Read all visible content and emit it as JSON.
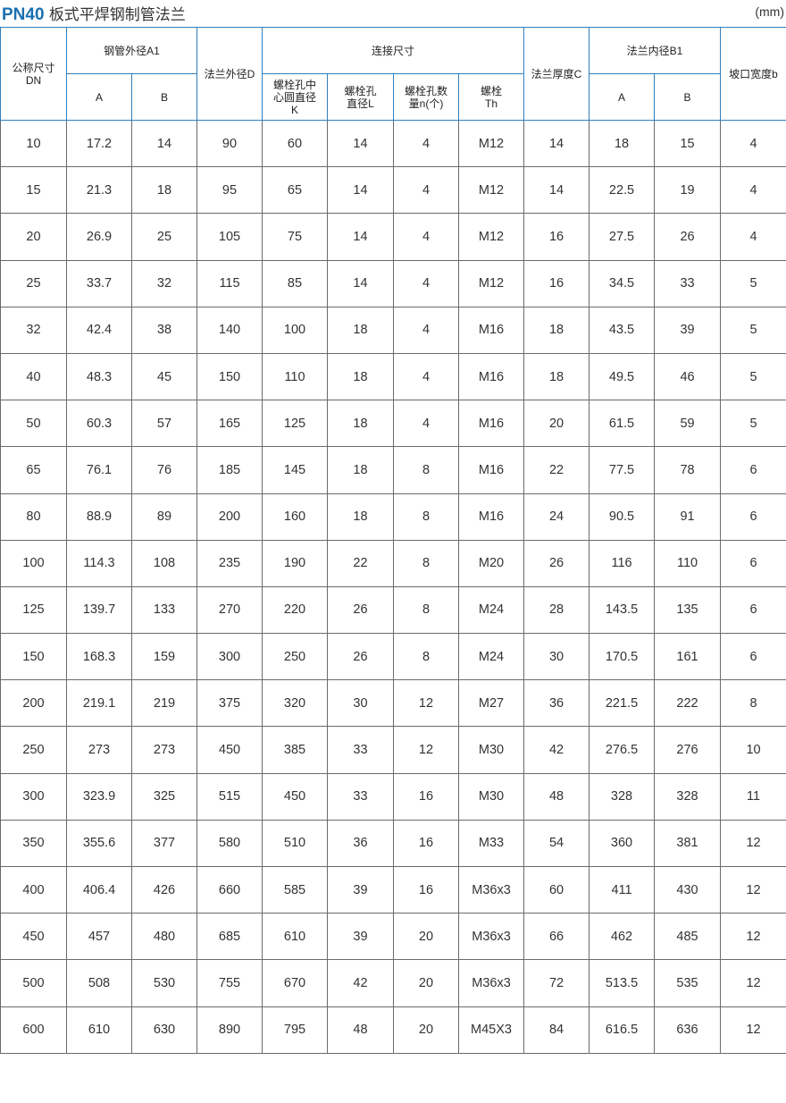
{
  "title": {
    "code": "PN40",
    "name": "板式平焊钢制管法兰"
  },
  "unit": "(mm)",
  "header": {
    "dn": "公称尺寸DN",
    "a1": "钢管外径A1",
    "d": "法兰外径D",
    "conn": "连接尺寸",
    "k": "螺栓孔中心圆直径K",
    "l": "螺栓孔直径L",
    "n": "螺栓孔数量n(个)",
    "th": "螺栓Th",
    "c": "法兰厚度C",
    "b1": "法兰内径B1",
    "b": "坡口宽度b",
    "sub_a": "A",
    "sub_b": "B"
  },
  "rows": [
    [
      "10",
      "17.2",
      "14",
      "90",
      "60",
      "14",
      "4",
      "M12",
      "14",
      "18",
      "15",
      "4"
    ],
    [
      "15",
      "21.3",
      "18",
      "95",
      "65",
      "14",
      "4",
      "M12",
      "14",
      "22.5",
      "19",
      "4"
    ],
    [
      "20",
      "26.9",
      "25",
      "105",
      "75",
      "14",
      "4",
      "M12",
      "16",
      "27.5",
      "26",
      "4"
    ],
    [
      "25",
      "33.7",
      "32",
      "115",
      "85",
      "14",
      "4",
      "M12",
      "16",
      "34.5",
      "33",
      "5"
    ],
    [
      "32",
      "42.4",
      "38",
      "140",
      "100",
      "18",
      "4",
      "M16",
      "18",
      "43.5",
      "39",
      "5"
    ],
    [
      "40",
      "48.3",
      "45",
      "150",
      "110",
      "18",
      "4",
      "M16",
      "18",
      "49.5",
      "46",
      "5"
    ],
    [
      "50",
      "60.3",
      "57",
      "165",
      "125",
      "18",
      "4",
      "M16",
      "20",
      "61.5",
      "59",
      "5"
    ],
    [
      "65",
      "76.1",
      "76",
      "185",
      "145",
      "18",
      "8",
      "M16",
      "22",
      "77.5",
      "78",
      "6"
    ],
    [
      "80",
      "88.9",
      "89",
      "200",
      "160",
      "18",
      "8",
      "M16",
      "24",
      "90.5",
      "91",
      "6"
    ],
    [
      "100",
      "114.3",
      "108",
      "235",
      "190",
      "22",
      "8",
      "M20",
      "26",
      "116",
      "110",
      "6"
    ],
    [
      "125",
      "139.7",
      "133",
      "270",
      "220",
      "26",
      "8",
      "M24",
      "28",
      "143.5",
      "135",
      "6"
    ],
    [
      "150",
      "168.3",
      "159",
      "300",
      "250",
      "26",
      "8",
      "M24",
      "30",
      "170.5",
      "161",
      "6"
    ],
    [
      "200",
      "219.1",
      "219",
      "375",
      "320",
      "30",
      "12",
      "M27",
      "36",
      "221.5",
      "222",
      "8"
    ],
    [
      "250",
      "273",
      "273",
      "450",
      "385",
      "33",
      "12",
      "M30",
      "42",
      "276.5",
      "276",
      "10"
    ],
    [
      "300",
      "323.9",
      "325",
      "515",
      "450",
      "33",
      "16",
      "M30",
      "48",
      "328",
      "328",
      "11"
    ],
    [
      "350",
      "355.6",
      "377",
      "580",
      "510",
      "36",
      "16",
      "M33",
      "54",
      "360",
      "381",
      "12"
    ],
    [
      "400",
      "406.4",
      "426",
      "660",
      "585",
      "39",
      "16",
      "M36x3",
      "60",
      "411",
      "430",
      "12"
    ],
    [
      "450",
      "457",
      "480",
      "685",
      "610",
      "39",
      "20",
      "M36x3",
      "66",
      "462",
      "485",
      "12"
    ],
    [
      "500",
      "508",
      "530",
      "755",
      "670",
      "42",
      "20",
      "M36x3",
      "72",
      "513.5",
      "535",
      "12"
    ],
    [
      "600",
      "610",
      "630",
      "890",
      "795",
      "48",
      "20",
      "M45X3",
      "84",
      "616.5",
      "636",
      "12"
    ]
  ],
  "colors": {
    "accent": "#1a6fb0",
    "header_border": "#2f7fbf",
    "grid": "#6a6a6a"
  }
}
